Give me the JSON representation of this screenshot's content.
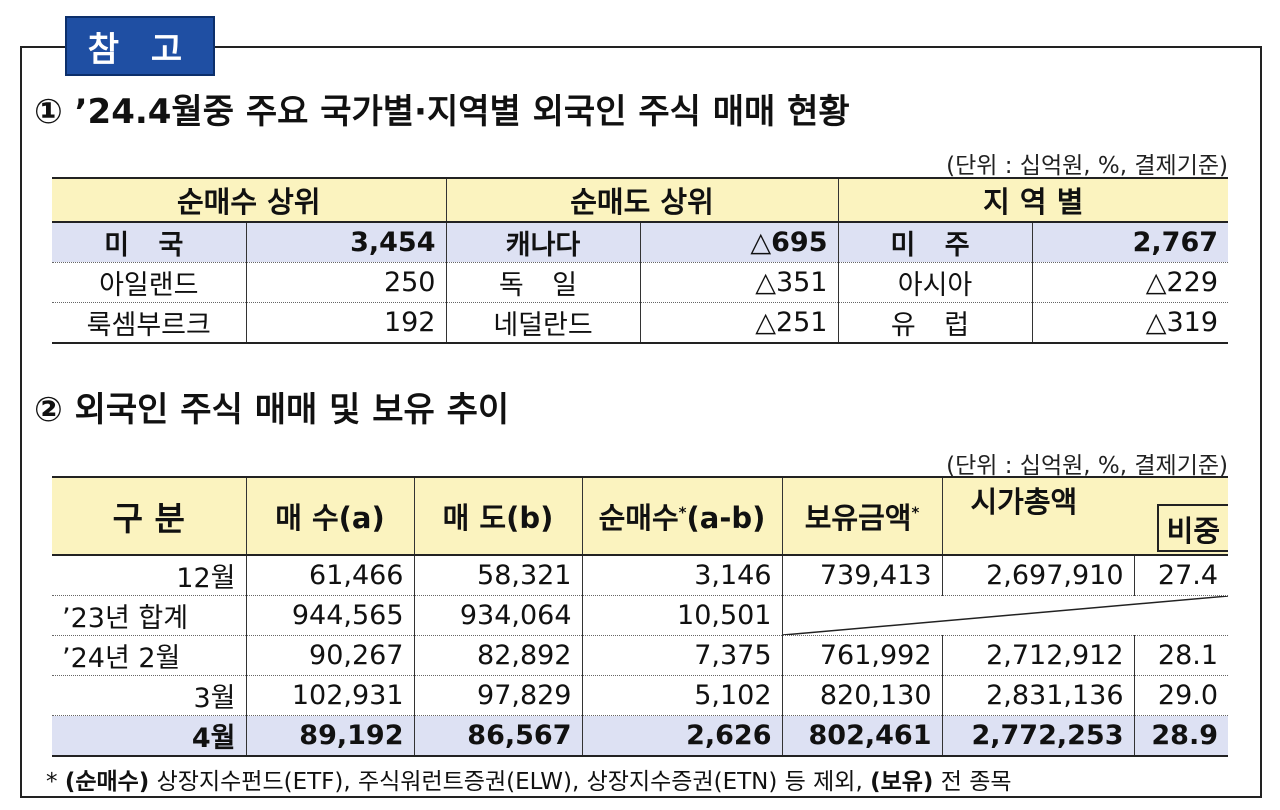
{
  "tag": "참 고",
  "section1": {
    "title": "① ’24.4월중 주요 국가별·지역별 외국인 주식 매매 현황",
    "unit": "(단위 : 십억원, %, 결제기준)",
    "headers": [
      "순매수 상위",
      "순매도 상위",
      "지 역 별"
    ],
    "rows": [
      {
        "buy_name": "미 국",
        "buy_value": "3,454",
        "sell_name": "캐나다",
        "sell_value": "△695",
        "region_name": "미 주",
        "region_value": "2,767"
      },
      {
        "buy_name": "아일랜드",
        "buy_value": "250",
        "sell_name": "독 일",
        "sell_value": "△351",
        "region_name": "아시아",
        "region_value": "△229"
      },
      {
        "buy_name": "룩셈부르크",
        "buy_value": "192",
        "sell_name": "네덜란드",
        "sell_value": "△251",
        "region_name": "유 럽",
        "region_value": "△319"
      }
    ]
  },
  "section2": {
    "title": "② 외국인 주식 매매 및 보유 추이",
    "unit": "(단위 : 십억원, %, 결제기준)",
    "headers": {
      "category": "구 분",
      "buy": "매 수(a)",
      "sell": "매 도(b)",
      "net_prefix": "순매수",
      "net_mark": "*",
      "net_suffix": "(a-b)",
      "holding_prefix": "보유금액",
      "holding_mark": "*",
      "market_cap": "시가총액",
      "ratio": "비중"
    },
    "rows": [
      {
        "label": "12월",
        "buy": "61,466",
        "sell": "58,321",
        "net": "3,146",
        "holding": "739,413",
        "market_cap": "2,697,910",
        "ratio": "27.4"
      },
      {
        "label": "’23년 합계",
        "buy": "944,565",
        "sell": "934,064",
        "net": "10,501",
        "holding": "",
        "market_cap": "",
        "ratio": ""
      },
      {
        "label": "’24년 2월",
        "buy": "90,267",
        "sell": "82,892",
        "net": "7,375",
        "holding": "761,992",
        "market_cap": "2,712,912",
        "ratio": "28.1"
      },
      {
        "label": "3월",
        "buy": "102,931",
        "sell": "97,829",
        "net": "5,102",
        "holding": "820,130",
        "market_cap": "2,831,136",
        "ratio": "29.0"
      },
      {
        "label": "4월",
        "buy": "89,192",
        "sell": "86,567",
        "net": "2,626",
        "holding": "802,461",
        "market_cap": "2,772,253",
        "ratio": "28.9"
      }
    ]
  },
  "footnote": {
    "star": "* ",
    "bold1": "(순매수)",
    "text1": " 상장지수펀드(ETF), 주식워런트증권(ELW), 상장지수증권(ETN) 등 제외, ",
    "bold2": "(보유)",
    "text2": " 전 종목"
  }
}
